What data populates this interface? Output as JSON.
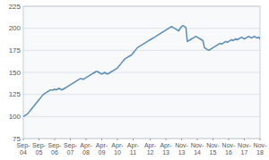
{
  "chart_data": {
    "type": "line",
    "categories": [
      "Sep-\n04",
      null,
      null,
      null,
      null,
      null,
      null,
      null,
      null,
      null,
      null,
      "Sep-\n05",
      null,
      null,
      null,
      null,
      null,
      null,
      null,
      null,
      null,
      null,
      "Sep-\n06",
      null,
      null,
      null,
      null,
      null,
      null,
      null,
      null,
      null,
      null,
      "Sep-\n07",
      null,
      null,
      null,
      null,
      null,
      null,
      null,
      null,
      null,
      null,
      "Apr-\n08",
      null,
      null,
      null,
      null,
      null,
      null,
      null,
      null,
      null,
      null,
      "Apr-\n09",
      null,
      null,
      null,
      null,
      null,
      null,
      null,
      null,
      null,
      null,
      "Apr-\n10",
      null,
      null,
      null,
      null,
      null,
      null,
      null,
      null,
      null,
      null,
      "Apr-\n11",
      null,
      null,
      null,
      null,
      null,
      null,
      null,
      null,
      null,
      null,
      null,
      "Apr-\n12",
      null,
      null,
      null,
      null,
      null,
      null,
      null,
      null,
      null,
      null,
      "Apr-\n13",
      null,
      null,
      null,
      null,
      null,
      null,
      null,
      null,
      null,
      null,
      "Nov-\n13",
      null,
      null,
      null,
      null,
      null,
      null,
      null,
      null,
      null,
      null,
      "Nov-\n14",
      null,
      null,
      null,
      null,
      null,
      null,
      null,
      null,
      null,
      null,
      "Nov-\n15",
      null,
      null,
      null,
      null,
      null,
      null,
      null,
      null,
      null,
      null,
      "Nov-\n16",
      null,
      null,
      null,
      null,
      null,
      null,
      null,
      null,
      null,
      null,
      "Nov-\n17",
      null,
      null,
      null,
      null,
      null,
      null,
      null,
      null,
      null,
      null,
      "Nov-\n18"
    ],
    "values": [
      100,
      101,
      102,
      103,
      105,
      107,
      109,
      111,
      113,
      115,
      117,
      119,
      121,
      123,
      125,
      126,
      127,
      128,
      129,
      130,
      130,
      130,
      131,
      130,
      131,
      132,
      131,
      130,
      131,
      132,
      133,
      134,
      135,
      136,
      137,
      138,
      139,
      140,
      141,
      142,
      143,
      143,
      142,
      143,
      144,
      145,
      146,
      147,
      148,
      149,
      150,
      151,
      151,
      150,
      149,
      148,
      149,
      150,
      149,
      148,
      149,
      150,
      151,
      152,
      153,
      154,
      155,
      157,
      159,
      161,
      163,
      165,
      166,
      167,
      168,
      169,
      170,
      172,
      174,
      176,
      178,
      179,
      180,
      181,
      182,
      183,
      184,
      185,
      186,
      187,
      188,
      189,
      190,
      191,
      192,
      193,
      194,
      195,
      196,
      197,
      198,
      199,
      200,
      201,
      202,
      201,
      200,
      199,
      198,
      197,
      200,
      202,
      203,
      202,
      201,
      185,
      186,
      187,
      188,
      189,
      190,
      191,
      190,
      189,
      188,
      187,
      186,
      178,
      177,
      176,
      175,
      176,
      177,
      178,
      179,
      180,
      181,
      182,
      183,
      182,
      183,
      184,
      185,
      184,
      185,
      186,
      187,
      186,
      187,
      188,
      187,
      188,
      189,
      190,
      189,
      188,
      189,
      190,
      191,
      190,
      189,
      190,
      191,
      190,
      189,
      190,
      188
    ],
    "color": "#5b8db8",
    "ylim": [
      75,
      225
    ],
    "yticks": [
      75,
      100,
      125,
      150,
      175,
      200,
      225
    ],
    "grid": true
  }
}
